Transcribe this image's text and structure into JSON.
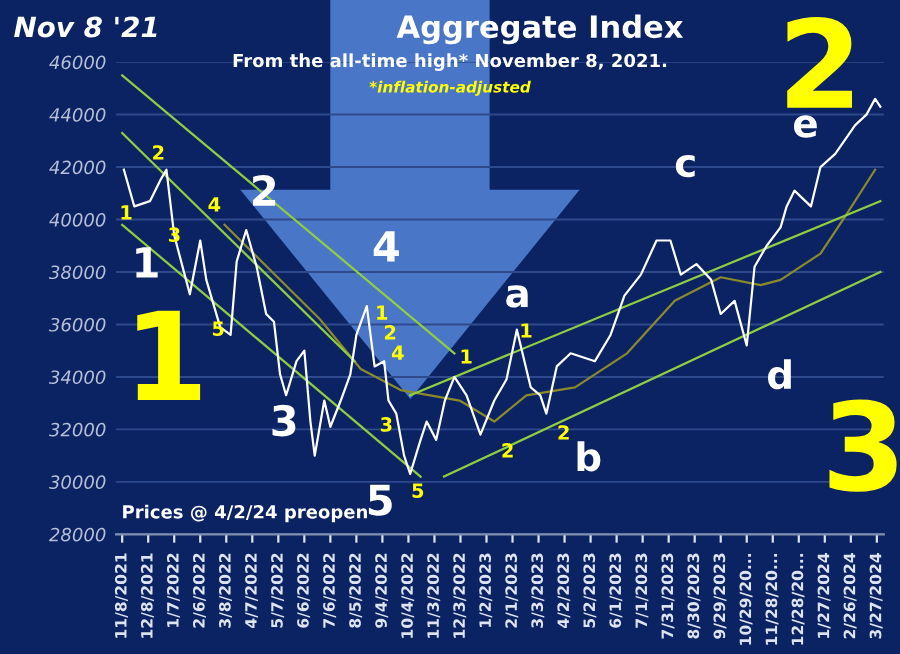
{
  "chart_data": {
    "type": "line",
    "title": "Aggregate Index",
    "subtitle": "From the all-time high* November 8, 2021.",
    "annotations": [
      "Nov 8 '21",
      "*inflation-adjusted",
      "Prices @ 4/2/24 preopen",
      "1",
      "2",
      "3",
      "4",
      "5",
      "1",
      "2",
      "4",
      "3",
      "5",
      "1",
      "2",
      "1",
      "2",
      "a",
      "b",
      "c",
      "d",
      "e",
      "1",
      "2",
      "3",
      "4",
      "5",
      "1",
      "2",
      "3"
    ],
    "xlim": [
      "2021-11-01",
      "2024-04-04"
    ],
    "ylim": [
      28000,
      46000
    ],
    "yticks": [
      28000,
      30000,
      32000,
      34000,
      36000,
      38000,
      40000,
      42000,
      44000,
      46000
    ],
    "xticks": [
      {
        "value": "2021-11-08",
        "label": "11/8/2021"
      },
      {
        "value": "2021-12-08",
        "label": "12/8/2021"
      },
      {
        "value": "2022-01-07",
        "label": "1/7/2022"
      },
      {
        "value": "2022-02-06",
        "label": "2/6/2022"
      },
      {
        "value": "2022-03-08",
        "label": "3/8/2022"
      },
      {
        "value": "2022-04-07",
        "label": "4/7/2022"
      },
      {
        "value": "2022-05-07",
        "label": "5/7/2022"
      },
      {
        "value": "2022-06-06",
        "label": "6/6/2022"
      },
      {
        "value": "2022-07-06",
        "label": "7/6/2022"
      },
      {
        "value": "2022-08-05",
        "label": "8/5/2022"
      },
      {
        "value": "2022-09-04",
        "label": "9/4/2022"
      },
      {
        "value": "2022-10-04",
        "label": "10/4/2022"
      },
      {
        "value": "2022-11-03",
        "label": "11/3/2022"
      },
      {
        "value": "2022-12-03",
        "label": "12/3/2022"
      },
      {
        "value": "2023-01-02",
        "label": "1/2/2023"
      },
      {
        "value": "2023-02-01",
        "label": "2/1/2023"
      },
      {
        "value": "2023-03-03",
        "label": "3/3/2023"
      },
      {
        "value": "2023-04-02",
        "label": "4/2/2023"
      },
      {
        "value": "2023-05-02",
        "label": "5/2/2023"
      },
      {
        "value": "2023-06-01",
        "label": "6/1/2023"
      },
      {
        "value": "2023-07-01",
        "label": "7/1/2023"
      },
      {
        "value": "2023-07-31",
        "label": "7/31/2023"
      },
      {
        "value": "2023-08-30",
        "label": "8/30/2023"
      },
      {
        "value": "2023-09-29",
        "label": "9/29/2023"
      },
      {
        "value": "2023-10-29",
        "label": "10/29/20..."
      },
      {
        "value": "2023-11-28",
        "label": "11/28/20..."
      },
      {
        "value": "2023-12-28",
        "label": "12/28/20..."
      },
      {
        "value": "2024-01-27",
        "label": "1/27/2024"
      },
      {
        "value": "2024-02-26",
        "label": "2/26/2024"
      },
      {
        "value": "2024-03-27",
        "label": "3/27/2024"
      }
    ],
    "grid": "y",
    "marker": "none",
    "line_style": "solid",
    "series": [
      {
        "color": "#ffffff",
        "x": [
          "2021-11-10",
          "2021-11-22",
          "2021-12-10",
          "2021-12-22",
          "2021-12-29",
          "2022-01-07",
          "2022-01-25",
          "2022-02-06",
          "2022-02-13",
          "2022-03-01",
          "2022-03-13",
          "2022-03-20",
          "2022-03-31",
          "2022-04-12",
          "2022-04-23",
          "2022-05-02",
          "2022-05-09",
          "2022-05-16",
          "2022-05-28",
          "2022-06-06",
          "2022-06-13",
          "2022-06-18",
          "2022-06-29",
          "2022-07-06",
          "2022-07-18",
          "2022-07-29",
          "2022-08-05",
          "2022-08-17",
          "2022-08-26",
          "2022-09-06",
          "2022-09-11",
          "2022-09-20",
          "2022-09-29",
          "2022-10-06",
          "2022-10-18",
          "2022-10-25",
          "2022-11-05",
          "2022-11-15",
          "2022-11-26",
          "2022-12-10",
          "2022-12-26",
          "2023-01-11",
          "2023-01-25",
          "2023-02-06",
          "2023-02-22",
          "2023-03-05",
          "2023-03-12",
          "2023-03-24",
          "2023-04-09",
          "2023-05-07",
          "2023-05-25",
          "2023-06-10",
          "2023-06-29",
          "2023-07-17",
          "2023-08-02",
          "2023-08-14",
          "2023-09-01",
          "2023-09-18",
          "2023-09-29",
          "2023-10-15",
          "2023-10-29",
          "2023-11-07",
          "2023-11-21",
          "2023-12-07",
          "2023-12-14",
          "2023-12-23",
          "2024-01-11",
          "2024-01-22",
          "2024-02-08",
          "2024-03-02",
          "2024-03-15",
          "2024-03-25",
          "2024-03-31"
        ],
        "values": [
          41900,
          40500,
          40700,
          41500,
          41900,
          39400,
          37150,
          39200,
          37700,
          35900,
          35600,
          38400,
          39600,
          38200,
          36400,
          36100,
          34100,
          33300,
          34600,
          35000,
          32300,
          31000,
          33100,
          32100,
          33100,
          34100,
          35600,
          36700,
          34400,
          34600,
          33100,
          32600,
          31000,
          30300,
          31600,
          32300,
          31600,
          33100,
          34000,
          33300,
          31800,
          33100,
          33900,
          35800,
          33600,
          33300,
          32600,
          34400,
          34900,
          34600,
          35600,
          37100,
          37900,
          39200,
          39200,
          37900,
          38300,
          37700,
          36400,
          36900,
          35200,
          38200,
          39000,
          39700,
          40500,
          41100,
          40500,
          42000,
          42500,
          43600,
          44000,
          44600,
          44300
        ]
      },
      {
        "color": "#8a8a2a",
        "x": [
          "2022-03-06",
          "2022-06-24",
          "2022-08-10",
          "2022-09-25",
          "2022-12-02",
          "2023-01-11",
          "2023-02-17",
          "2023-04-14",
          "2023-06-13",
          "2023-08-07",
          "2023-09-29",
          "2023-11-14",
          "2023-12-07",
          "2024-01-22",
          "2024-02-21",
          "2024-03-25"
        ],
        "values": [
          39800,
          36200,
          34300,
          33500,
          33100,
          32300,
          33300,
          33600,
          34900,
          36900,
          37800,
          37500,
          37700,
          38700,
          40200,
          41900
        ]
      },
      {
        "color": "#8fcf3f",
        "x": [
          "2021-11-08",
          "2022-11-26"
        ],
        "values": [
          45500,
          34900
        ]
      },
      {
        "color": "#8fcf3f",
        "x": [
          "2021-11-08",
          "2022-08-03"
        ],
        "values": [
          43300,
          34600
        ]
      },
      {
        "color": "#8fcf3f",
        "x": [
          "2021-11-08",
          "2022-10-18"
        ],
        "values": [
          39800,
          30200
        ]
      },
      {
        "color": "#8fcf3f",
        "x": [
          "2022-11-14",
          "2024-03-31"
        ],
        "values": [
          30200,
          38000
        ]
      },
      {
        "color": "#8fcf3f",
        "x": [
          "2022-10-06",
          "2024-03-31"
        ],
        "values": [
          33300,
          40700
        ]
      }
    ]
  }
}
